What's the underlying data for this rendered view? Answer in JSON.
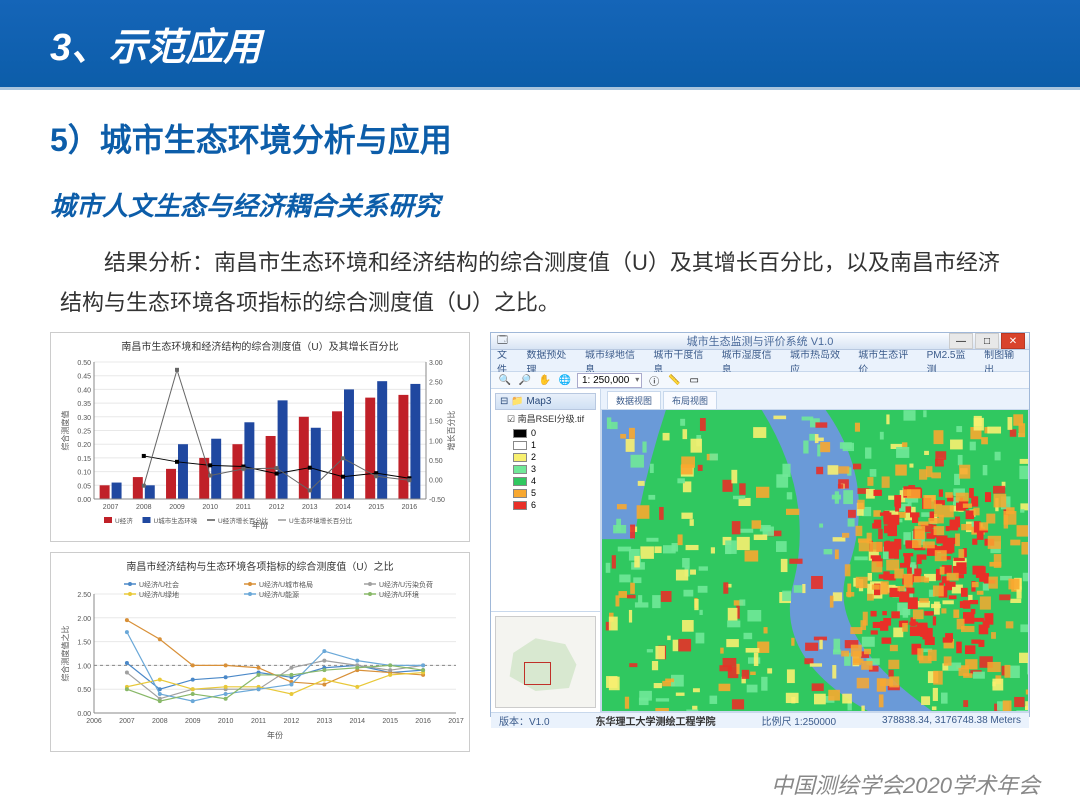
{
  "header": {
    "title": "3、示范应用"
  },
  "section": {
    "title": "5）城市生态环境分析与应用"
  },
  "subsection": {
    "title": "城市人文生态与经济耦合关系研究"
  },
  "paragraph": "结果分析：南昌市生态环境和经济结构的综合测度值（U）及其增长百分比，以及南昌市经济结构与生态环境各项指标的综合测度值（U）之比。",
  "chart1": {
    "title": "南昌市生态环境和经济结构的综合测度值（U）及其增长百分比",
    "ylabel": "综合测度值",
    "y2label": "增长百分比",
    "xlabel": "年份",
    "years": [
      "2007",
      "2008",
      "2009",
      "2010",
      "2011",
      "2012",
      "2013",
      "2014",
      "2015",
      "2016"
    ],
    "bar1": {
      "label": "U经济",
      "color": "#c02028",
      "values": [
        0.05,
        0.08,
        0.11,
        0.15,
        0.2,
        0.23,
        0.3,
        0.32,
        0.37,
        0.38
      ]
    },
    "bar2": {
      "label": "U城市生态环境",
      "color": "#2048a0",
      "values": [
        0.06,
        0.05,
        0.2,
        0.22,
        0.28,
        0.36,
        0.26,
        0.4,
        0.43,
        0.42
      ]
    },
    "line1": {
      "label": "U经济增长百分比",
      "color": "#000000",
      "values": [
        null,
        0.6,
        0.45,
        0.36,
        0.33,
        0.15,
        0.3,
        0.07,
        0.16,
        0.03
      ]
    },
    "line2": {
      "label": "U生态环境增长百分比",
      "color": "#666666",
      "values": [
        null,
        -0.16,
        2.8,
        0.1,
        0.27,
        0.29,
        -0.28,
        0.54,
        0.08,
        -0.02
      ]
    },
    "ylim": [
      0,
      0.5
    ],
    "ytick": 0.05,
    "y2lim": [
      -0.5,
      3.0
    ],
    "bg": "#ffffff",
    "grid": "#e8e8e8"
  },
  "chart2": {
    "title": "南昌市经济结构与生态环境各项指标的综合测度值（U）之比",
    "ylabel": "综合测度值之比",
    "xlabel": "年份",
    "years": [
      "2006",
      "2007",
      "2008",
      "2009",
      "2010",
      "2011",
      "2012",
      "2013",
      "2014",
      "2015",
      "2016",
      "2017"
    ],
    "series": [
      {
        "label": "U经济/U社会",
        "color": "#4a88c8",
        "values": [
          null,
          1.05,
          0.5,
          0.7,
          0.75,
          0.85,
          0.75,
          0.95,
          1.0,
          0.85,
          0.9,
          null
        ]
      },
      {
        "label": "U经济/U城市格局",
        "color": "#d89038",
        "values": [
          null,
          1.95,
          1.55,
          1.0,
          1.0,
          0.95,
          0.65,
          0.6,
          0.9,
          0.85,
          0.8,
          null
        ]
      },
      {
        "label": "U经济/U污染负荷",
        "color": "#a0a0a0",
        "values": [
          null,
          0.85,
          0.3,
          0.5,
          0.5,
          0.5,
          0.95,
          1.1,
          1.0,
          0.9,
          1.0,
          null
        ]
      },
      {
        "label": "U经济/U绿地",
        "color": "#e8c838",
        "values": [
          null,
          0.55,
          0.7,
          0.5,
          0.55,
          0.55,
          0.4,
          0.7,
          0.55,
          0.8,
          0.85,
          null
        ]
      },
      {
        "label": "U经济/U能源",
        "color": "#6aa8d8",
        "values": [
          null,
          1.7,
          0.4,
          0.25,
          0.4,
          0.5,
          0.6,
          1.3,
          1.1,
          1.0,
          1.0,
          null
        ]
      },
      {
        "label": "U经济/U环境",
        "color": "#88b868",
        "values": [
          null,
          0.5,
          0.25,
          0.4,
          0.3,
          0.8,
          0.8,
          0.9,
          0.95,
          1.0,
          0.9,
          null
        ]
      }
    ],
    "ylim": [
      0,
      2.5
    ],
    "ytick": 0.5,
    "ref_y": 1.0,
    "bg": "#ffffff",
    "grid": "#e8e8e8"
  },
  "gis": {
    "title": "城市生态监测与评价系统 V1.0",
    "menu": [
      "文件",
      "数据预处理",
      "城市绿地信息",
      "城市干度信息",
      "城市湿度信息",
      "城市热岛效应",
      "城市生态评价",
      "PM2.5监测",
      "制图输出"
    ],
    "scale": "1: 250,000",
    "layer_root": "Map3",
    "layer_name": "南昌RSEI分级.tif",
    "legend": [
      {
        "v": "0",
        "c": "#000000"
      },
      {
        "v": "1",
        "c": "#ffffff"
      },
      {
        "v": "2",
        "c": "#f8f070"
      },
      {
        "v": "3",
        "c": "#70e898"
      },
      {
        "v": "4",
        "c": "#30c860"
      },
      {
        "v": "5",
        "c": "#f8a830"
      },
      {
        "v": "6",
        "c": "#e83028"
      }
    ],
    "tabs": [
      "数据视图",
      "布局视图"
    ],
    "map_colors": {
      "water": "#6a9ad8",
      "c2": "#f8f070",
      "c3": "#70e898",
      "c4": "#30c860",
      "c5": "#f8a830",
      "c6": "#e83028"
    },
    "status": {
      "version": "版本：V1.0",
      "org": "东华理工大学测绘工程学院",
      "scale": "比例尺 1:250000",
      "coords": "378838.34, 3176748.38  Meters"
    }
  },
  "footer": "中国测绘学会2020学术年会"
}
